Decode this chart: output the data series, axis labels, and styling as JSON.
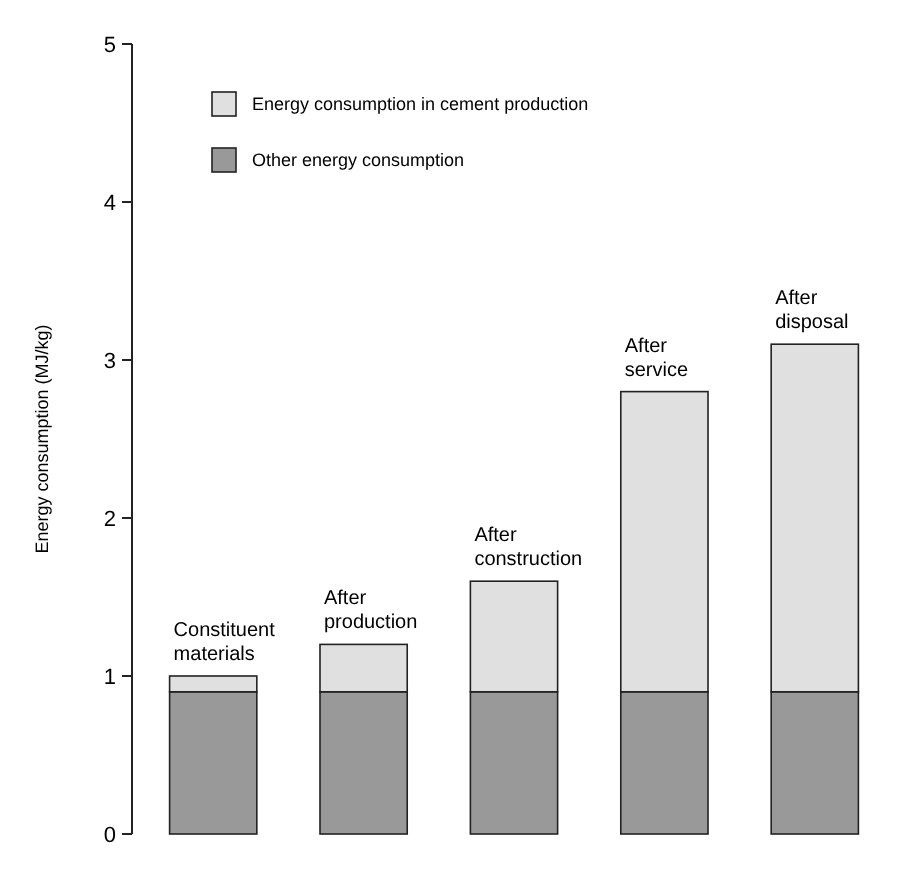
{
  "chart_data": {
    "type": "bar",
    "stacked": true,
    "ylabel": "Energy consumption (MJ/kg)",
    "categories": [
      "Constituent materials",
      "After production",
      "After construction",
      "After service",
      "After disposal"
    ],
    "series": [
      {
        "name": "Other energy consumption",
        "color": "#999999",
        "values": [
          0.9,
          0.9,
          0.9,
          0.9,
          0.9
        ]
      },
      {
        "name": "Energy consumption in cement production",
        "color": "#e0e0e0",
        "values": [
          0.1,
          0.3,
          0.7,
          1.9,
          2.2
        ]
      }
    ],
    "ylim": [
      0,
      5
    ],
    "yticks": [
      0,
      1,
      2,
      3,
      4,
      5
    ],
    "legend": "top left",
    "grid": false
  }
}
